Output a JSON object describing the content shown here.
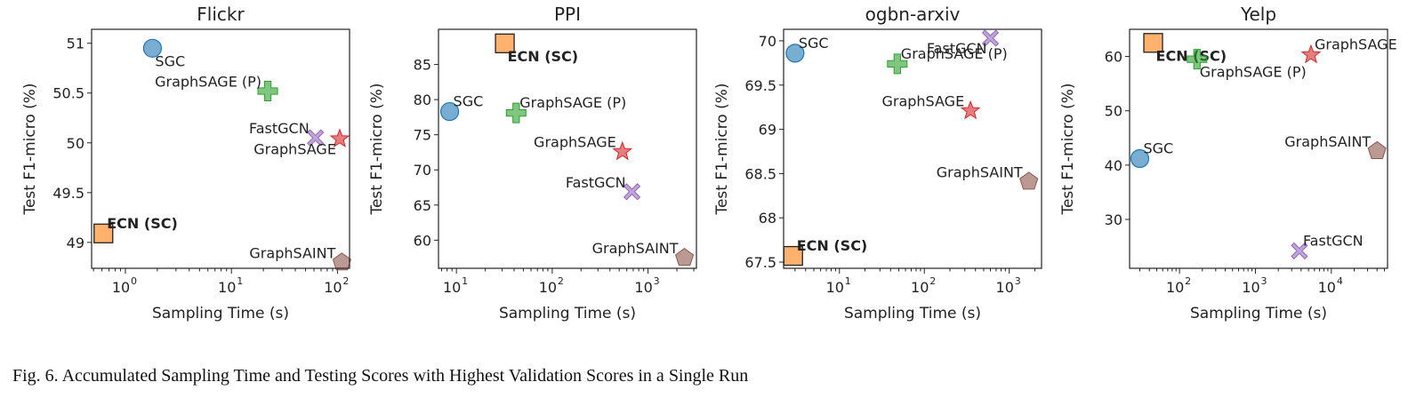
{
  "figure": {
    "caption": "Fig. 6.  Accumulated Sampling Time and Testing Scores with Highest Validation Scores in a Single Run"
  },
  "chart_data": [
    {
      "type": "scatter",
      "title": "Flickr",
      "xlabel": "Sampling Time (s)",
      "ylabel": "Test F1-micro (%)",
      "xscale": "log",
      "xlim": [
        0.48,
        130
      ],
      "ylim": [
        48.74,
        51.14
      ],
      "xticks": [
        1,
        10,
        100
      ],
      "yticks": [
        49.0,
        49.5,
        50.0,
        50.5,
        51.0
      ],
      "points": [
        {
          "label": "SGC",
          "x": 1.8,
          "y": 50.95,
          "marker": "circle",
          "color": "#1f77b4",
          "label_pos": "below-right"
        },
        {
          "label": "GraphSAGE (P)",
          "x": 22,
          "y": 50.52,
          "marker": "plus",
          "color": "#2ca02c",
          "label_pos": "above-left"
        },
        {
          "label": "FastGCN",
          "x": 62,
          "y": 50.05,
          "marker": "x",
          "color": "#9467bd",
          "label_pos": "above-left"
        },
        {
          "label": "GraphSAGE",
          "x": 105,
          "y": 50.04,
          "marker": "star",
          "color": "#d62728",
          "label_pos": "below-left"
        },
        {
          "label": "ECN (SC)",
          "x": 0.62,
          "y": 49.09,
          "marker": "square",
          "color": "#ff7f0e",
          "label_pos": "above-right",
          "bold": true
        },
        {
          "label": "GraphSAINT",
          "x": 110,
          "y": 48.8,
          "marker": "pentagon",
          "color": "#8c564b",
          "label_pos": "above-left"
        }
      ]
    },
    {
      "type": "scatter",
      "title": "PPI",
      "xlabel": "Sampling Time (s)",
      "ylabel": "Test F1-micro (%)",
      "xscale": "log",
      "xlim": [
        6.5,
        3200
      ],
      "ylim": [
        56.0,
        90.0
      ],
      "xticks": [
        10,
        100,
        1000
      ],
      "yticks": [
        60,
        65,
        70,
        75,
        80,
        85
      ],
      "points": [
        {
          "label": "ECN (SC)",
          "x": 32,
          "y": 88.0,
          "marker": "square",
          "color": "#ff7f0e",
          "label_pos": "below-right",
          "bold": true
        },
        {
          "label": "SGC",
          "x": 8.5,
          "y": 78.3,
          "marker": "circle",
          "color": "#1f77b4",
          "label_pos": "above-right"
        },
        {
          "label": "GraphSAGE (P)",
          "x": 42,
          "y": 78.1,
          "marker": "plus",
          "color": "#2ca02c",
          "label_pos": "above-right"
        },
        {
          "label": "GraphSAGE",
          "x": 540,
          "y": 72.6,
          "marker": "star",
          "color": "#d62728",
          "label_pos": "above-left"
        },
        {
          "label": "FastGCN",
          "x": 680,
          "y": 66.9,
          "marker": "x",
          "color": "#9467bd",
          "label_pos": "above-left"
        },
        {
          "label": "GraphSAINT",
          "x": 2400,
          "y": 57.5,
          "marker": "pentagon",
          "color": "#8c564b",
          "label_pos": "above-left"
        }
      ]
    },
    {
      "type": "scatter",
      "title": "ogbn-arxiv",
      "xlabel": "Sampling Time (s)",
      "ylabel": "Test F1-micro (%)",
      "xscale": "log",
      "xlim": [
        2.2,
        2400
      ],
      "ylim": [
        67.43,
        70.13
      ],
      "xticks": [
        10,
        100,
        1000
      ],
      "yticks": [
        67.5,
        68.0,
        68.5,
        69.0,
        69.5,
        70.0
      ],
      "points": [
        {
          "label": "FastGCN",
          "x": 600,
          "y": 70.03,
          "marker": "x",
          "color": "#9467bd",
          "label_pos": "below-left"
        },
        {
          "label": "SGC",
          "x": 3.0,
          "y": 69.86,
          "marker": "circle",
          "color": "#1f77b4",
          "label_pos": "above-right"
        },
        {
          "label": "GraphSAGE (P)",
          "x": 48,
          "y": 69.74,
          "marker": "plus",
          "color": "#2ca02c",
          "label_pos": "above-right"
        },
        {
          "label": "GraphSAGE",
          "x": 350,
          "y": 69.21,
          "marker": "star",
          "color": "#d62728",
          "label_pos": "above-left"
        },
        {
          "label": "GraphSAINT",
          "x": 1700,
          "y": 68.41,
          "marker": "pentagon",
          "color": "#8c564b",
          "label_pos": "above-left"
        },
        {
          "label": "ECN (SC)",
          "x": 2.85,
          "y": 67.57,
          "marker": "square",
          "color": "#ff7f0e",
          "label_pos": "above-right",
          "bold": true
        }
      ]
    },
    {
      "type": "scatter",
      "title": "Yelp",
      "xlabel": "Sampling Time (s)",
      "ylabel": "Test F1-micro (%)",
      "xscale": "log",
      "xlim": [
        22,
        55000
      ],
      "ylim": [
        21.0,
        65.0
      ],
      "xticks": [
        100,
        1000,
        10000
      ],
      "yticks": [
        30,
        40,
        50,
        60
      ],
      "points": [
        {
          "label": "ECN (SC)",
          "x": 45,
          "y": 62.5,
          "marker": "square",
          "color": "#ff7f0e",
          "label_pos": "below-right",
          "bold": true
        },
        {
          "label": "GraphSAGE",
          "x": 5400,
          "y": 60.3,
          "marker": "star",
          "color": "#d62728",
          "label_pos": "above-right"
        },
        {
          "label": "GraphSAGE (P)",
          "x": 170,
          "y": 59.5,
          "marker": "plus",
          "color": "#2ca02c",
          "label_pos": "below-right"
        },
        {
          "label": "GraphSAINT",
          "x": 40000,
          "y": 42.6,
          "marker": "pentagon",
          "color": "#8c564b",
          "label_pos": "above-left"
        },
        {
          "label": "SGC",
          "x": 30,
          "y": 41.2,
          "marker": "circle",
          "color": "#1f77b4",
          "label_pos": "above-right"
        },
        {
          "label": "FastGCN",
          "x": 3800,
          "y": 24.2,
          "marker": "x",
          "color": "#9467bd",
          "label_pos": "above-right"
        }
      ]
    }
  ]
}
